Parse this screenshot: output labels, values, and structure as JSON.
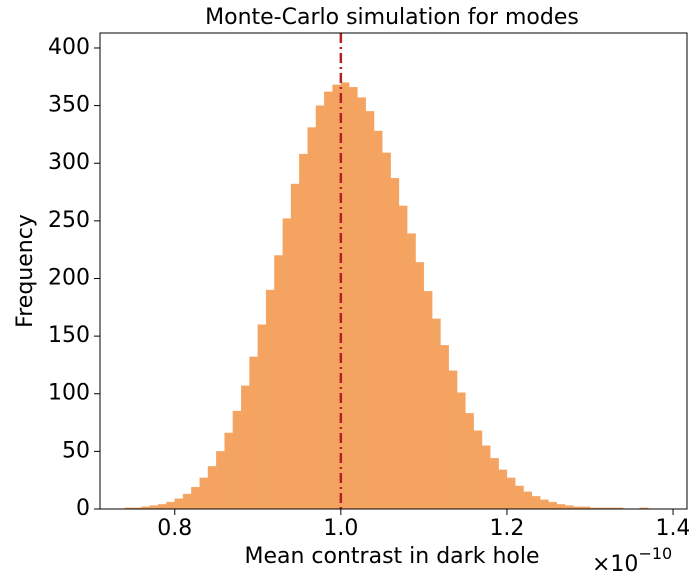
{
  "chart_data": {
    "type": "histogram",
    "title": "Monte-Carlo simulation for modes",
    "xlabel": "Mean contrast in dark hole",
    "ylabel": "Frequency",
    "x_offset_label": {
      "base": "×10",
      "exponent": "−10"
    },
    "color": "#f4a460",
    "bins": [
      0.74,
      0.75,
      0.76,
      0.77,
      0.78,
      0.79,
      0.8,
      0.81,
      0.82,
      0.83,
      0.84,
      0.85,
      0.86,
      0.87,
      0.88,
      0.89,
      0.9,
      0.91,
      0.92,
      0.93,
      0.94,
      0.95,
      0.96,
      0.97,
      0.98,
      0.99,
      1.0,
      1.01,
      1.02,
      1.03,
      1.04,
      1.05,
      1.06,
      1.07,
      1.08,
      1.09,
      1.1,
      1.11,
      1.12,
      1.13,
      1.14,
      1.15,
      1.16,
      1.17,
      1.18,
      1.19,
      1.2,
      1.21,
      1.22,
      1.23,
      1.24,
      1.25,
      1.26,
      1.27,
      1.28,
      1.29,
      1.3,
      1.31,
      1.32,
      1.33,
      1.34,
      1.35,
      1.36,
      1.37,
      1.38,
      1.39,
      1.4
    ],
    "values": [
      1,
      1,
      2,
      3,
      4,
      6,
      9,
      13,
      19,
      27,
      37,
      50,
      66,
      85,
      107,
      132,
      160,
      190,
      220,
      252,
      282,
      308,
      331,
      350,
      362,
      368,
      370,
      366,
      357,
      345,
      328,
      309,
      287,
      263,
      239,
      214,
      189,
      165,
      142,
      120,
      101,
      83,
      68,
      55,
      44,
      34,
      27,
      20,
      15,
      11,
      8,
      6,
      4,
      3,
      2,
      2,
      1,
      1,
      1,
      1,
      0,
      0,
      1,
      0,
      0,
      0
    ],
    "vline": {
      "x": 1.0,
      "color": "#b22222"
    },
    "xlim": [
      0.71,
      1.418
    ],
    "ylim": [
      0,
      413
    ],
    "xticks": [
      0.8,
      {
        "value": 1,
        "label": "1.0"
      },
      0.8,
      1.2,
      1.4
    ],
    "yticks": [
      0,
      50,
      100,
      150,
      200,
      250,
      300,
      350,
      400
    ]
  }
}
